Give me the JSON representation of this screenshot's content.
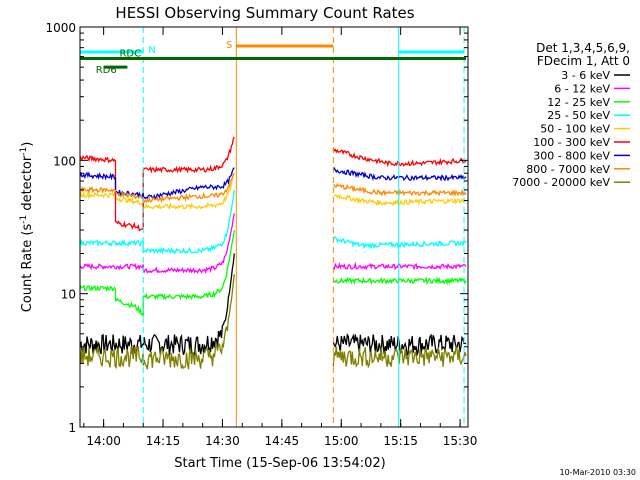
{
  "chart_data": {
    "type": "line",
    "title": "HESSI Observing Summary Count Rates",
    "xlabel": "Start Time (15-Sep-06 13:54:02)",
    "ylabel": "Count Rate (s",
    "ylabel_sup1": "-1",
    "ylabel_mid": " detector",
    "ylabel_sup2": "-1",
    "ylabel_end": ")",
    "y_scale": "log",
    "ylim": [
      1,
      1000
    ],
    "xlim": [
      "13:54:02",
      "15:32:00"
    ],
    "x_ticks": [
      "14:00",
      "14:15",
      "14:30",
      "14:45",
      "15:00",
      "15:15",
      "15:30"
    ],
    "y_ticks": [
      "1",
      "10",
      "100",
      "1000"
    ],
    "footer": "10-Mar-2010 03:30",
    "legend": {
      "placement": "right",
      "header1": "Det 1,3,4,5,6,9,",
      "header2": "FDecim 1, Att 0"
    },
    "series": [
      {
        "name": "3 - 6 keV",
        "color": "#000000",
        "segments": [
          {
            "x": [
              "13:54:02",
              "14:10:00",
              "14:10:00",
              "14:25:00",
              "14:28:00",
              "14:30:00",
              "14:31:00",
              "14:32:00",
              "14:33:00"
            ],
            "y": [
              4.2,
              4.2,
              4.2,
              4.2,
              4.6,
              5,
              7,
              12,
              20
            ]
          },
          {
            "x": [
              "14:58:00",
              "15:31:30"
            ],
            "y": [
              4.2,
              4.2
            ]
          }
        ]
      },
      {
        "name": "6 - 12 keV",
        "color": "#ff00ff",
        "segments": [
          {
            "x": [
              "13:54:02",
              "14:10:00",
              "14:10:00",
              "14:25:00",
              "14:28:00",
              "14:30:00",
              "14:31:00",
              "14:32:00",
              "14:33:00"
            ],
            "y": [
              16,
              16,
              15,
              15,
              15.5,
              17,
              20,
              28,
              40
            ]
          },
          {
            "x": [
              "14:58:00",
              "15:31:30"
            ],
            "y": [
              16,
              16
            ]
          }
        ]
      },
      {
        "name": "12 - 25 keV",
        "color": "#00ff00",
        "segments": [
          {
            "x": [
              "13:54:02",
              "14:03:00",
              "14:03:00",
              "14:08:00",
              "14:10:00",
              "14:10:00",
              "14:25:00",
              "14:28:00",
              "14:30:00",
              "14:31:00",
              "14:32:00",
              "14:33:00"
            ],
            "y": [
              11,
              11,
              9,
              8,
              7,
              9.5,
              9.5,
              10,
              11,
              14,
              20,
              30
            ]
          },
          {
            "x": [
              "14:58:00",
              "15:31:30"
            ],
            "y": [
              12.5,
              12.5
            ]
          }
        ]
      },
      {
        "name": "25 - 50 keV",
        "color": "#00ffff",
        "segments": [
          {
            "x": [
              "13:54:02",
              "14:10:00",
              "14:10:00",
              "14:25:00",
              "14:28:00",
              "14:30:00",
              "14:31:00",
              "14:32:00",
              "14:33:00"
            ],
            "y": [
              24,
              24,
              21,
              21,
              22,
              24,
              28,
              38,
              60
            ]
          },
          {
            "x": [
              "14:58:00",
              "15:05:00",
              "15:31:30"
            ],
            "y": [
              26,
              23,
              24
            ]
          }
        ]
      },
      {
        "name": "50 - 100 keV",
        "color": "#ffcc00",
        "segments": [
          {
            "x": [
              "13:54:02",
              "14:03:00",
              "14:03:00",
              "14:10:00",
              "14:10:00",
              "14:25:00",
              "14:28:00",
              "14:30:00",
              "14:31:00",
              "14:32:00",
              "14:33:00"
            ],
            "y": [
              55,
              55,
              52,
              48,
              45,
              45,
              46,
              48,
              53,
              62,
              80
            ]
          },
          {
            "x": [
              "14:58:00",
              "15:05:00",
              "15:10:00",
              "15:31:30"
            ],
            "y": [
              55,
              50,
              48,
              50
            ]
          }
        ]
      },
      {
        "name": "100 - 300 keV",
        "color": "#ff0000",
        "segments": [
          {
            "x": [
              "13:54:02",
              "14:03:00",
              "14:03:00",
              "14:08:00",
              "14:10:00",
              "14:10:00",
              "14:25:00",
              "14:28:00",
              "14:30:00",
              "14:31:00",
              "14:32:00",
              "14:33:00"
            ],
            "y": [
              105,
              100,
              34,
              32,
              30,
              85,
              85,
              87,
              92,
              100,
              120,
              150
            ]
          },
          {
            "x": [
              "14:58:00",
              "15:05:00",
              "15:12:00",
              "15:20:00",
              "15:31:30"
            ],
            "y": [
              120,
              105,
              95,
              95,
              100
            ]
          }
        ]
      },
      {
        "name": "300 - 800 keV",
        "color": "#0000cc",
        "segments": [
          {
            "x": [
              "13:54:02",
              "14:03:00",
              "14:03:00",
              "14:10:00",
              "14:10:00",
              "14:25:00",
              "14:28:00",
              "14:30:00",
              "14:31:00",
              "14:32:00",
              "14:33:00"
            ],
            "y": [
              78,
              75,
              58,
              55,
              52,
              63,
              63,
              64,
              67,
              74,
              88
            ]
          },
          {
            "x": [
              "14:58:00",
              "15:05:00",
              "15:10:00",
              "15:31:30"
            ],
            "y": [
              85,
              78,
              74,
              74
            ]
          }
        ]
      },
      {
        "name": "800 - 7000 keV",
        "color": "#ff8800",
        "segments": [
          {
            "x": [
              "13:54:02",
              "14:03:00",
              "14:03:00",
              "14:10:00",
              "14:10:00",
              "14:25:00",
              "14:28:00",
              "14:30:00",
              "14:31:00",
              "14:32:00",
              "14:33:00"
            ],
            "y": [
              60,
              60,
              56,
              53,
              50,
              54,
              54,
              56,
              60,
              68,
              80
            ]
          },
          {
            "x": [
              "14:58:00",
              "15:05:00",
              "15:10:00",
              "15:31:30"
            ],
            "y": [
              65,
              60,
              57,
              57
            ]
          }
        ]
      },
      {
        "name": "7000 - 20000 keV",
        "color": "#808000",
        "segments": [
          {
            "x": [
              "13:54:02",
              "14:10:00",
              "14:10:00",
              "14:25:00",
              "14:28:00",
              "14:30:00",
              "14:31:00",
              "14:32:00",
              "14:33:00"
            ],
            "y": [
              3.4,
              3.4,
              3.3,
              3.3,
              3.5,
              4,
              5,
              8,
              14
            ]
          },
          {
            "x": [
              "14:58:00",
              "15:31:30"
            ],
            "y": [
              3.4,
              3.4
            ]
          }
        ]
      }
    ],
    "vertical_markers": [
      {
        "time": "13:54:02",
        "color": "#00ffff",
        "style": "solid"
      },
      {
        "time": "14:10:00",
        "color": "#00ffff",
        "style": "dashed"
      },
      {
        "time": "14:33:30",
        "color": "#ff8800",
        "style": "solid"
      },
      {
        "time": "14:58:00",
        "color": "#ff8800",
        "style": "dashed"
      },
      {
        "time": "15:14:30",
        "color": "#00ffff",
        "style": "solid"
      },
      {
        "time": "15:31:00",
        "color": "#00ffff",
        "style": "dashed"
      }
    ],
    "flag_bars": [
      {
        "label": "N",
        "color": "#00ffff",
        "segments": [
          [
            "13:54:02",
            "14:10:00"
          ],
          [
            "15:14:30",
            "15:31:00"
          ]
        ],
        "y": 650
      },
      {
        "label": "S",
        "color": "#ff8800",
        "segments": [
          [
            "14:33:30",
            "14:58:00"
          ]
        ],
        "y": 720
      },
      {
        "label": "RDC",
        "color": "#006600",
        "segments": [
          [
            "13:54:02",
            "15:31:30"
          ]
        ],
        "y": 580
      },
      {
        "label": "RD6",
        "color": "#006600",
        "segments": [
          [
            "14:00:00",
            "14:06:00"
          ]
        ],
        "y": 500
      }
    ]
  }
}
